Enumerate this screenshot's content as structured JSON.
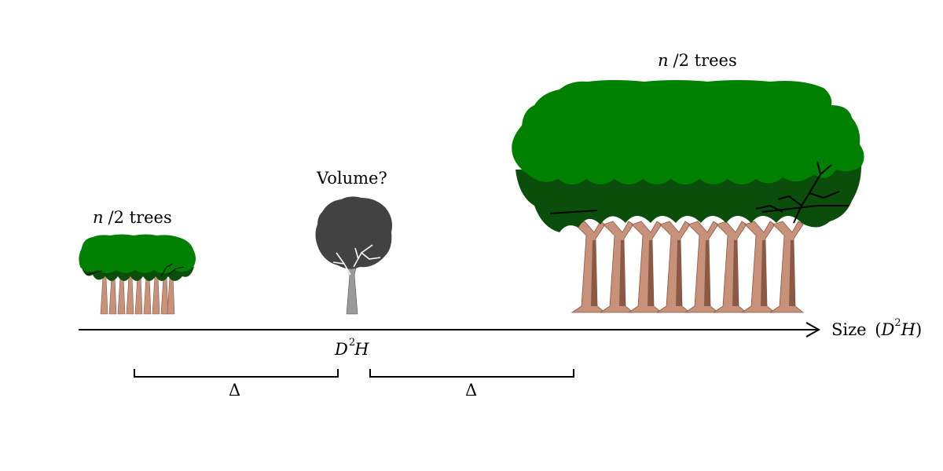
{
  "left_group": {
    "n": "n",
    "rest": "/2 trees"
  },
  "right_group": {
    "n": "n",
    "rest": "/2 trees"
  },
  "middle_tree": {
    "label": "Volume?"
  },
  "axis": {
    "label_text": "Size",
    "label_open": "(",
    "label_d": "D",
    "label_exp": "2",
    "label_h": "H",
    "label_close": ")"
  },
  "center_tick": {
    "d": "D",
    "exp": "2",
    "h": "H"
  },
  "deltas": {
    "left": "Δ",
    "right": "Δ"
  },
  "colors": {
    "canopy": "#008000",
    "canopy_dark": "#0b4d0b",
    "trunk": "#c8917a",
    "trunk_shade": "#8a5a45",
    "grey_canopy": "#424242",
    "grey_trunk": "#9a9a9a",
    "ink": "#000000"
  }
}
